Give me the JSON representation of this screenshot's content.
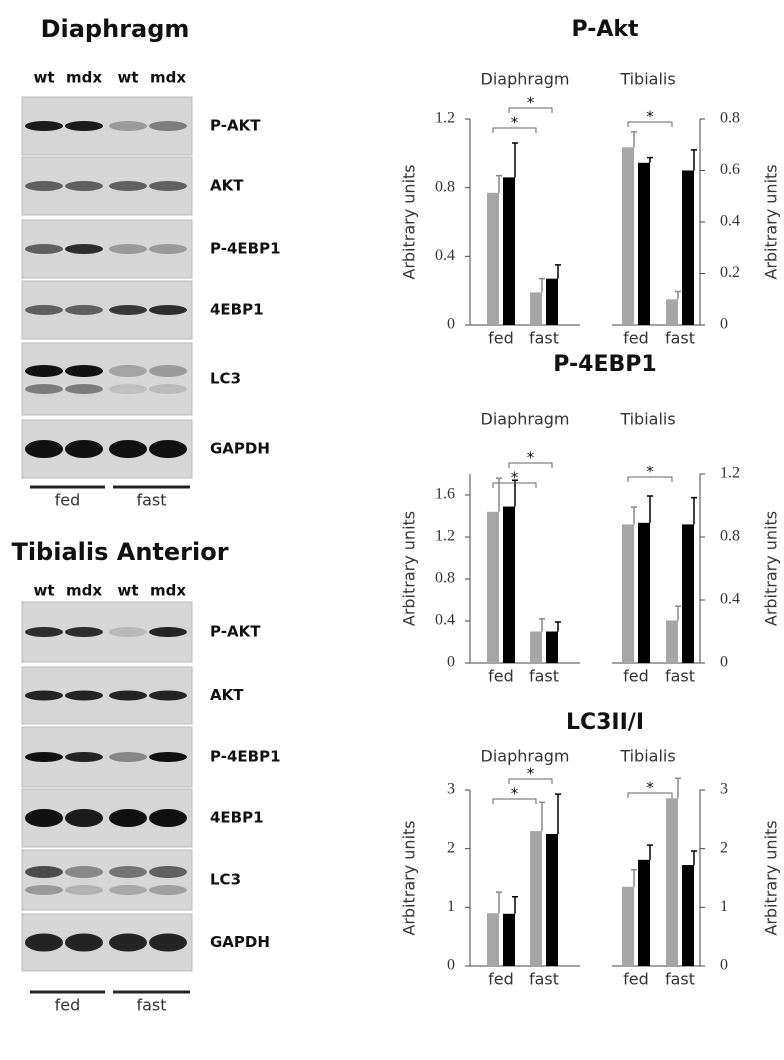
{
  "blots": [
    {
      "title": "Diaphragm",
      "lanes": [
        "wt",
        "mdx",
        "wt",
        "mdx"
      ],
      "rows": [
        "P-AKT",
        "AKT",
        "P-4EBP1",
        "4EBP1",
        "LC3",
        "GAPDH"
      ],
      "groups": [
        "fed",
        "fast"
      ]
    },
    {
      "title": "Tibialis Anterior",
      "lanes": [
        "wt",
        "mdx",
        "wt",
        "mdx"
      ],
      "rows": [
        "P-AKT",
        "AKT",
        "P-4EBP1",
        "4EBP1",
        "LC3",
        "GAPDH"
      ],
      "groups": [
        "fed",
        "fast"
      ]
    }
  ],
  "panel_titles": [
    "P-Akt",
    "P-4EBP1",
    "LC3II/I"
  ],
  "chart_data": [
    {
      "type": "bar",
      "title": "Diaphragm",
      "ylabel": "Arbitrary units",
      "categories": [
        "fed",
        "fast"
      ],
      "ylim": [
        0,
        1.2
      ],
      "yticks": [
        0,
        0.4,
        0.8,
        1.2
      ],
      "axis_side": "left",
      "annotations": [
        "*",
        "*"
      ],
      "series": [
        {
          "color": "#a6a6a6",
          "values": [
            0.77,
            0.19
          ],
          "errors": [
            0.1,
            0.08
          ]
        },
        {
          "color": "#000000",
          "values": [
            0.86,
            0.27
          ],
          "errors": [
            0.2,
            0.08
          ]
        }
      ]
    },
    {
      "type": "bar",
      "title": "Tibialis",
      "ylabel": "Arbitrary units",
      "categories": [
        "fed",
        "fast"
      ],
      "ylim": [
        0,
        0.8
      ],
      "yticks": [
        0,
        0.2,
        0.4,
        0.6,
        0.8
      ],
      "axis_side": "right",
      "annotations": [
        "*"
      ],
      "series": [
        {
          "color": "#a6a6a6",
          "values": [
            0.69,
            0.1
          ],
          "errors": [
            0.06,
            0.03
          ]
        },
        {
          "color": "#000000",
          "values": [
            0.63,
            0.6
          ],
          "errors": [
            0.02,
            0.08
          ]
        }
      ]
    },
    {
      "type": "bar",
      "title": "Diaphragm",
      "ylabel": "Arbitrary units",
      "categories": [
        "fed",
        "fast"
      ],
      "ylim": [
        0,
        1.8
      ],
      "yticks": [
        0,
        0.4,
        0.8,
        1.2,
        1.6
      ],
      "axis_side": "left",
      "annotations": [
        "*",
        "*"
      ],
      "series": [
        {
          "color": "#a6a6a6",
          "values": [
            1.44,
            0.3
          ],
          "errors": [
            0.32,
            0.12
          ]
        },
        {
          "color": "#000000",
          "values": [
            1.49,
            0.3
          ],
          "errors": [
            0.25,
            0.09
          ]
        }
      ]
    },
    {
      "type": "bar",
      "title": "Tibialis",
      "ylabel": "Arbitrary units",
      "categories": [
        "fed",
        "fast"
      ],
      "ylim": [
        0,
        1.2
      ],
      "yticks": [
        0,
        0.4,
        0.8,
        1.2
      ],
      "axis_side": "right",
      "annotations": [
        "*"
      ],
      "series": [
        {
          "color": "#a6a6a6",
          "values": [
            0.88,
            0.27
          ],
          "errors": [
            0.11,
            0.09
          ]
        },
        {
          "color": "#000000",
          "values": [
            0.89,
            0.88
          ],
          "errors": [
            0.17,
            0.17
          ]
        }
      ]
    },
    {
      "type": "bar",
      "title": "Diaphragm",
      "ylabel": "Arbitrary units",
      "categories": [
        "fed",
        "fast"
      ],
      "ylim": [
        0,
        3
      ],
      "yticks": [
        0,
        1,
        2,
        3
      ],
      "axis_side": "left",
      "annotations": [
        "*",
        "*"
      ],
      "series": [
        {
          "color": "#a6a6a6",
          "values": [
            0.9,
            2.3
          ],
          "errors": [
            0.36,
            0.49
          ]
        },
        {
          "color": "#000000",
          "values": [
            0.89,
            2.25
          ],
          "errors": [
            0.29,
            0.68
          ]
        }
      ]
    },
    {
      "type": "bar",
      "title": "Tibialis",
      "ylabel": "Arbitrary units",
      "categories": [
        "fed",
        "fast"
      ],
      "ylim": [
        0,
        3
      ],
      "yticks": [
        0,
        1,
        2,
        3
      ],
      "axis_side": "right",
      "annotations": [
        "*"
      ],
      "series": [
        {
          "color": "#a6a6a6",
          "values": [
            1.35,
            2.86
          ],
          "errors": [
            0.29,
            0.34
          ]
        },
        {
          "color": "#000000",
          "values": [
            1.81,
            1.72
          ],
          "errors": [
            0.25,
            0.24
          ]
        }
      ]
    }
  ]
}
